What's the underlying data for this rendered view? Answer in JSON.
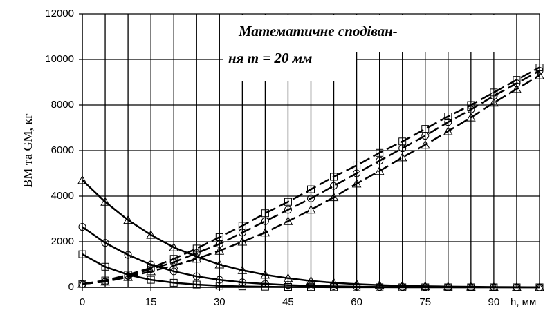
{
  "chart_data": {
    "type": "line",
    "annotation": [
      "Математичне сподіван-",
      "ня m = 20 мм"
    ],
    "xlabel": "h, мм",
    "ylabel": "BM та GM, кг",
    "x": [
      0,
      5,
      10,
      15,
      20,
      25,
      30,
      35,
      40,
      45,
      50,
      55,
      60,
      65,
      70,
      75,
      80,
      85,
      90,
      95,
      100
    ],
    "xlim": [
      0,
      100
    ],
    "xticks": [
      0,
      15,
      30,
      45,
      60,
      75,
      90
    ],
    "xgrid": [
      5,
      10,
      15,
      20,
      25,
      30,
      35,
      40,
      45,
      50,
      55,
      60,
      65,
      70,
      75,
      80,
      85,
      90,
      95,
      100
    ],
    "ylim": [
      0,
      12000
    ],
    "yticks": [
      0,
      2000,
      4000,
      6000,
      8000,
      10000,
      12000
    ],
    "grid": true,
    "series": [
      {
        "color": "#000",
        "marker": "triangle",
        "line_style": "solid",
        "values": [
          4700,
          3750,
          2950,
          2300,
          1750,
          1350,
          1000,
          750,
          550,
          400,
          280,
          200,
          140,
          100,
          70,
          50,
          35,
          25,
          15,
          10,
          5
        ]
      },
      {
        "color": "#000",
        "marker": "circle",
        "line_style": "solid",
        "values": [
          2650,
          1950,
          1420,
          1000,
          700,
          480,
          330,
          220,
          150,
          100,
          70,
          45,
          30,
          20,
          15,
          10,
          5,
          3,
          2,
          1,
          0
        ]
      },
      {
        "color": "#000",
        "marker": "square",
        "line_style": "solid",
        "values": [
          1450,
          900,
          550,
          330,
          200,
          120,
          70,
          40,
          25,
          15,
          10,
          5,
          3,
          2,
          1,
          0,
          0,
          0,
          0,
          0,
          0
        ]
      },
      {
        "color": "#000",
        "marker": "square",
        "line_style": "dashed",
        "values": [
          150,
          300,
          550,
          850,
          1250,
          1700,
          2200,
          2700,
          3250,
          3750,
          4300,
          4850,
          5350,
          5900,
          6400,
          6950,
          7500,
          8000,
          8550,
          9100,
          9650
        ]
      },
      {
        "color": "#000",
        "marker": "circle",
        "line_style": "dashed",
        "values": [
          150,
          250,
          500,
          800,
          1100,
          1500,
          1900,
          2400,
          2900,
          3400,
          3900,
          4450,
          5000,
          5550,
          6100,
          6650,
          7250,
          7800,
          8400,
          8950,
          9500
        ]
      },
      {
        "color": "#000",
        "marker": "triangle",
        "line_style": "dashed",
        "values": [
          150,
          250,
          450,
          700,
          950,
          1250,
          1600,
          2000,
          2400,
          2900,
          3400,
          3950,
          4550,
          5100,
          5700,
          6250,
          6850,
          7450,
          8100,
          8700,
          9300
        ]
      }
    ]
  }
}
